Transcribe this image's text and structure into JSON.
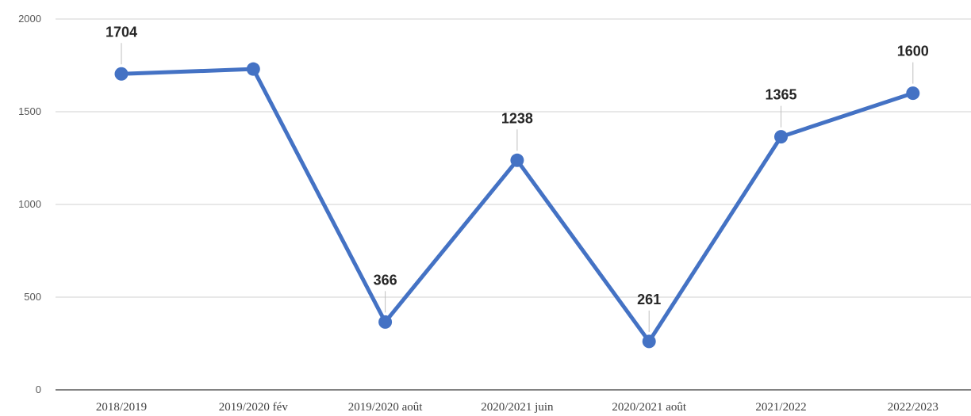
{
  "chart_data": {
    "type": "line",
    "categories": [
      "2018/2019",
      "2019/2020 fév",
      "2019/2020 août",
      "2020/2021 juin",
      "2020/2021 août",
      "2021/2022",
      "2022/2023"
    ],
    "series": [
      {
        "values": [
          1704,
          1730,
          366,
          1238,
          261,
          1365,
          1600
        ],
        "data_labels": [
          "1704",
          "",
          "366",
          "1238",
          "261",
          "1365",
          "1600"
        ],
        "color": "#4472c4"
      }
    ],
    "ylim": [
      0,
      2000
    ],
    "yticks": [
      0,
      500,
      1000,
      1500,
      2000
    ],
    "grid": true,
    "title": "",
    "xlabel": "",
    "ylabel": ""
  }
}
